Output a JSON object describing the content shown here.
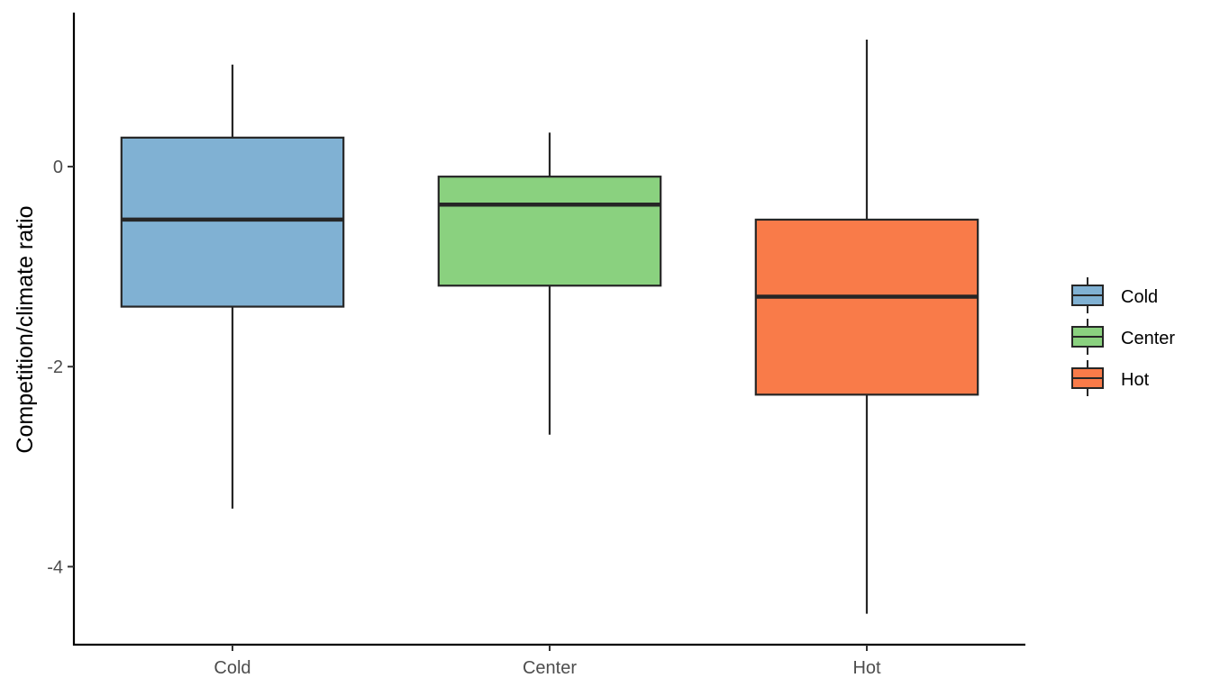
{
  "chart_data": {
    "type": "box",
    "categories": [
      "Cold",
      "Center",
      "Hot"
    ],
    "boxes": [
      {
        "category": "Cold",
        "min": -3.42,
        "q1": -1.4,
        "median": -0.53,
        "q3": 0.29,
        "max": 1.02,
        "color": "#80b1d3"
      },
      {
        "category": "Center",
        "min": -2.68,
        "q1": -1.19,
        "median": -0.38,
        "q3": -0.1,
        "max": 0.34,
        "color": "#8ad17f"
      },
      {
        "category": "Hot",
        "min": -4.47,
        "q1": -2.28,
        "median": -1.3,
        "q3": -0.53,
        "max": 1.27,
        "color": "#f97b49"
      }
    ],
    "xlabel": "",
    "ylabel": "Competition/climate ratio",
    "ylim": [
      -4.78,
      1.54
    ],
    "yticks": [
      0,
      -2,
      -4
    ],
    "ytick_labels": [
      "0",
      "-2",
      "-4"
    ],
    "legend": {
      "position": "right",
      "items": [
        {
          "label": "Cold",
          "color": "#80b1d3"
        },
        {
          "label": "Center",
          "color": "#8ad17f"
        },
        {
          "label": "Hot",
          "color": "#f97b49"
        }
      ]
    },
    "grid": false
  }
}
